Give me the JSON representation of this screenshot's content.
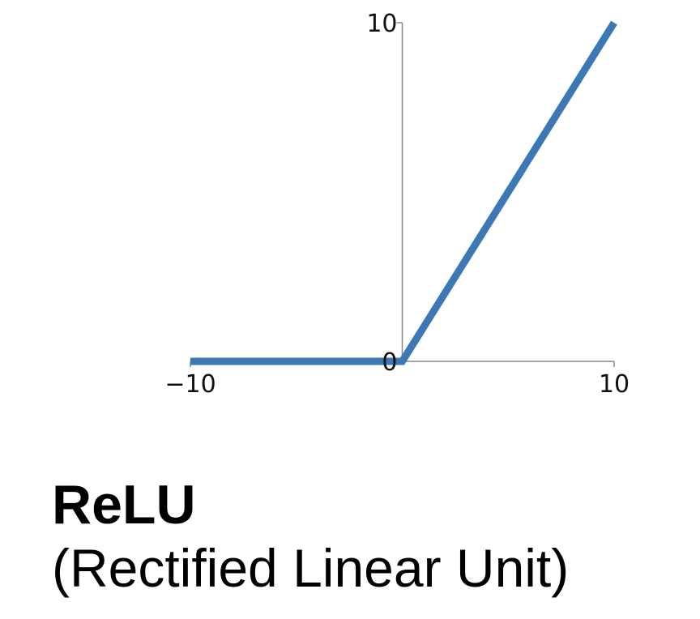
{
  "chart_data": {
    "type": "line",
    "series": [
      {
        "x": [
          -10,
          0,
          10
        ],
        "y": [
          0,
          0,
          10
        ]
      }
    ],
    "xlim": [
      -10,
      10
    ],
    "ylim": [
      0,
      10
    ],
    "x_ticks": [
      {
        "value": -10,
        "label": "−10"
      },
      {
        "value": 10,
        "label": "10"
      }
    ],
    "y_ticks": [
      {
        "value": 10,
        "label": "10"
      },
      {
        "value": 0,
        "label": "0"
      }
    ],
    "grid": false,
    "line_color": "#3b78b5",
    "axis_color": "#888888"
  },
  "caption": {
    "title": "ReLU",
    "subtitle": "(Rectified Linear Unit)"
  }
}
